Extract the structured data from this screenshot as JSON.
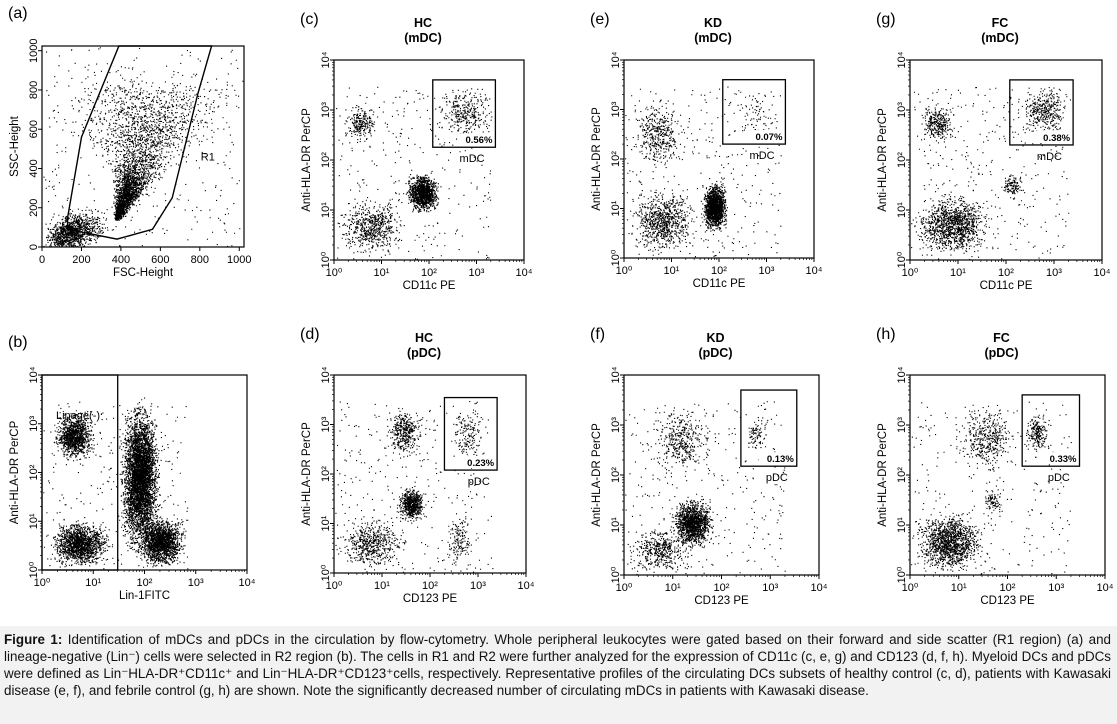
{
  "accent_color": "#000000",
  "caption": {
    "label": "Figure 1:",
    "text": "Identification of mDCs and pDCs in the circulation by flow-cytometry. Whole peripheral leukocytes were gated based on their forward and side scatter (R1 region) (a) and lineage-negative (Lin⁻) cells were selected in R2 region (b). The cells in R1 and R2 were further analyzed for the expression of CD11c (c, e, g) and CD123 (d, f, h). Myeloid DCs and pDCs were defined as Lin⁻HLA-DR⁺CD11c⁺ and Lin⁻HLA-DR⁺CD123⁺cells, respectively. Representative profiles of the circulating DCs subsets of healthy control (c, d), patients with Kawasaki disease (e, f), and febrile control (g, h) are shown. Note the significantly decreased number of circulating mDCs in patients with Kawasaki disease."
  },
  "chart_data": [
    {
      "id": "a",
      "type": "scatter",
      "panel_label": "(a)",
      "title": "",
      "subtitle": "",
      "xlabel": "FSC-Height",
      "ylabel": "SSC-Height",
      "scale": "linear",
      "xlim": [
        0,
        1024
      ],
      "ylim": [
        0,
        1024
      ],
      "x_ticks": [
        "0",
        "200",
        "400",
        "600",
        "800",
        "1000"
      ],
      "y_ticks": [
        "0",
        "200",
        "400",
        "600",
        "800",
        "1000"
      ],
      "gate_label": "R1",
      "gate_polygon": [
        [
          130,
          150
        ],
        [
          200,
          560
        ],
        [
          390,
          1024
        ],
        [
          860,
          1024
        ],
        [
          790,
          780
        ],
        [
          660,
          250
        ],
        [
          560,
          90
        ],
        [
          380,
          40
        ],
        [
          130,
          90
        ]
      ],
      "populations": [
        {
          "desc": "main",
          "x": [
            [
              380,
              20
            ],
            [
              470,
              150
            ],
            [
              560,
              700
            ]
          ],
          "y": [
            [
              150,
              25
            ],
            [
              360,
              120
            ],
            [
              790,
              200
            ]
          ],
          "n": 3300
        },
        {
          "desc": "low-debris",
          "x": [
            [
              80,
              100
            ],
            [
              220,
              200
            ]
          ],
          "y": [
            [
              20,
              140
            ],
            [
              120,
              120
            ]
          ],
          "n": 1300
        },
        {
          "desc": "scatter",
          "x": [
            [
              0,
              1024
            ]
          ],
          "y": [
            [
              0,
              1024
            ]
          ],
          "n": 320
        }
      ]
    },
    {
      "id": "b",
      "type": "scatter",
      "panel_label": "(b)",
      "title": "",
      "subtitle": "",
      "xlabel": "Lin-1FITC",
      "ylabel": "Anti-HLA-DR PerCP",
      "scale": "log",
      "xlim": [
        1,
        10000
      ],
      "ylim": [
        1,
        10000
      ],
      "x_ticks": [
        "10⁰",
        "10¹",
        "10²",
        "10³",
        "10⁴"
      ],
      "y_ticks": [
        "10⁰",
        "10¹",
        "10²",
        "10³",
        "10⁴"
      ],
      "gate_label": "Linage(-)",
      "gate_rect": {
        "x": [
          1,
          30
        ],
        "y": [
          1,
          10000
        ]
      },
      "populations": [
        {
          "desc": "lin-neg HLA-DR+",
          "x": [
            [
              1.5,
              12
            ]
          ],
          "y": [
            [
              150,
              2000
            ]
          ],
          "n": 1200
        },
        {
          "desc": "lin-neg low",
          "x": [
            [
              1.2,
              25
            ]
          ],
          "y": [
            [
              1,
              12
            ]
          ],
          "n": 1500
        },
        {
          "desc": "lin-pos band",
          "x": [
            [
              30,
              220
            ]
          ],
          "y": [
            [
              1.5,
              4000
            ]
          ],
          "n": 4500
        },
        {
          "desc": "lin-pos low",
          "x": [
            [
              60,
              700
            ]
          ],
          "y": [
            [
              1,
              15
            ]
          ],
          "n": 1800
        },
        {
          "desc": "scatter",
          "x": [
            [
              1,
              700
            ]
          ],
          "y": [
            [
              1,
              3000
            ]
          ],
          "n": 300
        }
      ]
    },
    {
      "id": "c",
      "type": "scatter",
      "panel_label": "(c)",
      "title": "HC",
      "subtitle": "(mDC)",
      "xlabel": "CD11c PE",
      "ylabel": "Anti-HLA-DR PerCP",
      "scale": "log",
      "xlim": [
        1,
        10000
      ],
      "ylim": [
        1,
        10000
      ],
      "x_ticks": [
        "10⁰",
        "10¹",
        "10²",
        "10³",
        "10⁴"
      ],
      "y_ticks": [
        "10⁰",
        "10¹",
        "10²",
        "10³",
        "10⁴"
      ],
      "gate_label": "mDC",
      "gate_percent": "0.56%",
      "gate_rect": {
        "x": [
          120,
          2500
        ],
        "y": [
          180,
          4000
        ]
      },
      "populations": [
        {
          "desc": "HLA-DR+ CD11c-",
          "x": [
            [
              1.5,
              8
            ]
          ],
          "y": [
            [
              200,
              1500
            ]
          ],
          "n": 230
        },
        {
          "desc": "dense cluster",
          "x": [
            [
              30,
              180
            ]
          ],
          "y": [
            [
              8,
              60
            ]
          ],
          "n": 1200
        },
        {
          "desc": "mDC",
          "x": [
            [
              120,
              2500
            ]
          ],
          "y": [
            [
              180,
              4000
            ]
          ],
          "n": 320
        },
        {
          "desc": "low",
          "x": [
            [
              1,
              40
            ]
          ],
          "y": [
            [
              1,
              20
            ]
          ],
          "n": 600
        },
        {
          "desc": "scatter",
          "x": [
            [
              1,
              2000
            ]
          ],
          "y": [
            [
              1,
              3000
            ]
          ],
          "n": 300
        }
      ]
    },
    {
      "id": "d",
      "type": "scatter",
      "panel_label": "(d)",
      "title": "HC",
      "subtitle": "(pDC)",
      "xlabel": "CD123 PE",
      "ylabel": "Anti-HLA-DR PerCP",
      "scale": "log",
      "xlim": [
        1,
        10000
      ],
      "ylim": [
        1,
        10000
      ],
      "x_ticks": [
        "10⁰",
        "10¹",
        "10²",
        "10³",
        "10⁴"
      ],
      "y_ticks": [
        "10⁰",
        "10¹",
        "10²",
        "10³",
        "10⁴"
      ],
      "gate_label": "pDC",
      "gate_percent": "0.23%",
      "gate_rect": {
        "x": [
          200,
          2500
        ],
        "y": [
          120,
          3500
        ]
      },
      "populations": [
        {
          "desc": "HLA-DR+ CD123-",
          "x": [
            [
              10,
              80
            ]
          ],
          "y": [
            [
              200,
              2500
            ]
          ],
          "n": 380
        },
        {
          "desc": "dense cluster",
          "x": [
            [
              20,
              80
            ]
          ],
          "y": [
            [
              10,
              60
            ]
          ],
          "n": 650
        },
        {
          "desc": "pDC",
          "x": [
            [
              250,
              1500
            ]
          ],
          "y": [
            [
              150,
              2500
            ]
          ],
          "n": 150
        },
        {
          "desc": "low",
          "x": [
            [
              1,
              40
            ]
          ],
          "y": [
            [
              1,
              15
            ]
          ],
          "n": 550
        },
        {
          "desc": "CD123 low column",
          "x": [
            [
              200,
              800
            ]
          ],
          "y": [
            [
              1,
              20
            ]
          ],
          "n": 150
        },
        {
          "desc": "scatter",
          "x": [
            [
              1,
              2000
            ]
          ],
          "y": [
            [
              1,
              3000
            ]
          ],
          "n": 300
        }
      ]
    },
    {
      "id": "e",
      "type": "scatter",
      "panel_label": "(e)",
      "title": "KD",
      "subtitle": "(mDC)",
      "xlabel": "CD11c PE",
      "ylabel": "Anti-HLA-DR PerCP",
      "scale": "log",
      "xlim": [
        1,
        10000
      ],
      "ylim": [
        1,
        10000
      ],
      "x_ticks": [
        "10⁰",
        "10¹",
        "10²",
        "10³",
        "10⁴"
      ],
      "y_ticks": [
        "10⁰",
        "10¹",
        "10²",
        "10³",
        "10⁴"
      ],
      "gate_label": "mDC",
      "gate_percent": "0.07%",
      "gate_rect": {
        "x": [
          120,
          2500
        ],
        "y": [
          200,
          4000
        ]
      },
      "populations": [
        {
          "desc": "dense cluster",
          "x": [
            [
              40,
              160
            ]
          ],
          "y": [
            [
              3,
              40
            ]
          ],
          "n": 1600
        },
        {
          "desc": "HLA-DR+ CD11c-",
          "x": [
            [
              1.3,
              20
            ]
          ],
          "y": [
            [
              50,
              2000
            ]
          ],
          "n": 400
        },
        {
          "desc": "mDC",
          "x": [
            [
              150,
              2000
            ]
          ],
          "y": [
            [
              250,
              2500
            ]
          ],
          "n": 70
        },
        {
          "desc": "low",
          "x": [
            [
              1,
              40
            ]
          ],
          "y": [
            [
              1,
              30
            ]
          ],
          "n": 800
        },
        {
          "desc": "scatter",
          "x": [
            [
              1,
              2000
            ]
          ],
          "y": [
            [
              1,
              3000
            ]
          ],
          "n": 320
        }
      ]
    },
    {
      "id": "f",
      "type": "scatter",
      "panel_label": "(f)",
      "title": "KD",
      "subtitle": "(pDC)",
      "xlabel": "CD123 PE",
      "ylabel": "Anti-HLA-DR PerCP",
      "scale": "log",
      "xlim": [
        1,
        10000
      ],
      "ylim": [
        1,
        10000
      ],
      "x_ticks": [
        "10⁰",
        "10¹",
        "10²",
        "10³",
        "10⁴"
      ],
      "y_ticks": [
        "10⁰",
        "10¹",
        "10²",
        "10³",
        "10⁴"
      ],
      "gate_label": "pDC",
      "gate_percent": "0.13%",
      "gate_rect": {
        "x": [
          250,
          3500
        ],
        "y": [
          150,
          5000
        ]
      },
      "populations": [
        {
          "desc": "dense cluster",
          "x": [
            [
              8,
              80
            ]
          ],
          "y": [
            [
              3,
              40
            ]
          ],
          "n": 1400
        },
        {
          "desc": "HLA-DR+ CD123-",
          "x": [
            [
              3,
              80
            ]
          ],
          "y": [
            [
              80,
              3000
            ]
          ],
          "n": 400
        },
        {
          "desc": "pDC",
          "x": [
            [
              300,
              1000
            ]
          ],
          "y": [
            [
              250,
              1500
            ]
          ],
          "n": 80
        },
        {
          "desc": "low",
          "x": [
            [
              1,
              30
            ]
          ],
          "y": [
            [
              1,
              10
            ]
          ],
          "n": 450
        },
        {
          "desc": "scatter",
          "x": [
            [
              1,
              2000
            ]
          ],
          "y": [
            [
              1,
              3000
            ]
          ],
          "n": 300
        }
      ]
    },
    {
      "id": "g",
      "type": "scatter",
      "panel_label": "(g)",
      "title": "FC",
      "subtitle": "(mDC)",
      "xlabel": "CD11c PE",
      "ylabel": "Anti-HLA-DR PerCP",
      "scale": "log",
      "xlim": [
        1,
        10000
      ],
      "ylim": [
        1,
        10000
      ],
      "x_ticks": [
        "10⁰",
        "10¹",
        "10²",
        "10³",
        "10⁴"
      ],
      "y_ticks": [
        "10⁰",
        "10¹",
        "10²",
        "10³",
        "10⁴"
      ],
      "gate_label": "mDC",
      "gate_percent": "0.38%",
      "gate_rect": {
        "x": [
          120,
          2500
        ],
        "y": [
          200,
          4000
        ]
      },
      "populations": [
        {
          "desc": "HLA-DR+ CD11c-",
          "x": [
            [
              1.5,
              9
            ]
          ],
          "y": [
            [
              200,
              1500
            ]
          ],
          "n": 300
        },
        {
          "desc": "mDC",
          "x": [
            [
              150,
              2500
            ]
          ],
          "y": [
            [
              250,
              3500
            ]
          ],
          "n": 380
        },
        {
          "desc": "small cluster",
          "x": [
            [
              70,
              250
            ]
          ],
          "y": [
            [
              15,
              60
            ]
          ],
          "n": 120
        },
        {
          "desc": "low",
          "x": [
            [
              1,
              60
            ]
          ],
          "y": [
            [
              1,
              25
            ]
          ],
          "n": 1200
        },
        {
          "desc": "scatter",
          "x": [
            [
              1,
              2000
            ]
          ],
          "y": [
            [
              1,
              3000
            ]
          ],
          "n": 350
        }
      ]
    },
    {
      "id": "h",
      "type": "scatter",
      "panel_label": "(h)",
      "title": "FC",
      "subtitle": "(pDC)",
      "xlabel": "CD123 PE",
      "ylabel": "Anti-HLA-DR PerCP",
      "scale": "log",
      "xlim": [
        1,
        10000
      ],
      "ylim": [
        1,
        10000
      ],
      "x_ticks": [
        "10⁰",
        "10¹",
        "10²",
        "10³",
        "10⁴"
      ],
      "y_ticks": [
        "10⁰",
        "10¹",
        "10²",
        "10³",
        "10⁴"
      ],
      "gate_label": "pDC",
      "gate_percent": "0.33%",
      "gate_rect": {
        "x": [
          200,
          3000
        ],
        "y": [
          150,
          4000
        ]
      },
      "populations": [
        {
          "desc": "HLA-DR+ CD123-",
          "x": [
            [
              10,
              150
            ]
          ],
          "y": [
            [
              100,
              3000
            ]
          ],
          "n": 400
        },
        {
          "desc": "pDC",
          "x": [
            [
              200,
              800
            ]
          ],
          "y": [
            [
              250,
              2000
            ]
          ],
          "n": 200
        },
        {
          "desc": "small cluster",
          "x": [
            [
              30,
              80
            ]
          ],
          "y": [
            [
              15,
              60
            ]
          ],
          "n": 90
        },
        {
          "desc": "low",
          "x": [
            [
              1,
              40
            ]
          ],
          "y": [
            [
              1,
              20
            ]
          ],
          "n": 1300
        },
        {
          "desc": "scatter",
          "x": [
            [
              1,
              2000
            ]
          ],
          "y": [
            [
              1,
              3000
            ]
          ],
          "n": 300
        }
      ]
    }
  ]
}
